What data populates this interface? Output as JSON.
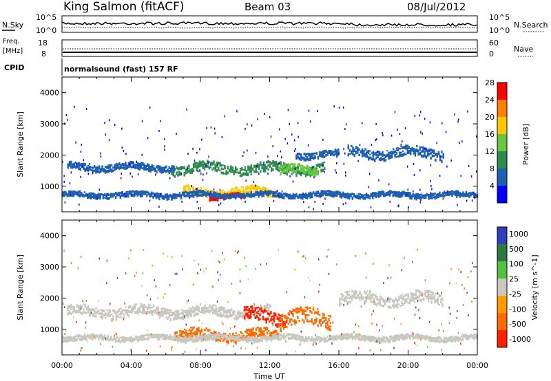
{
  "header": {
    "station": "King Salmon (fitACF)",
    "beam": "Beam 03",
    "date": "08/Jul/2012"
  },
  "noise_panel": {
    "left_label": "N.Sky",
    "right_label": "N.Search",
    "left_ticks": [
      "10^5",
      "10^0"
    ],
    "right_ticks": [
      "10^5",
      "10^0"
    ]
  },
  "freq_panel": {
    "left_label_1": "Freq.",
    "left_label_2": "[MHz]",
    "right_label": "Nave",
    "left_ticks": [
      "18",
      "8"
    ],
    "right_ticks": [
      "60",
      "0"
    ]
  },
  "cpid": {
    "label": "CPID",
    "value": "normalsound (fast) 157 RF"
  },
  "chart_data": [
    {
      "type": "heatmap",
      "title": "",
      "xlabel": "Time UT",
      "ylabel": "Slant Range [km]",
      "xlim_hours": [
        0,
        24
      ],
      "ylim": [
        180,
        4500
      ],
      "x_ticks": [
        "00:00",
        "04:00",
        "08:00",
        "12:00",
        "16:00",
        "20:00",
        "00:00"
      ],
      "y_ticks": [
        "1000",
        "2000",
        "3000",
        "4000"
      ],
      "colorbar_label": "Power [dB]",
      "colorbar_ticks": [
        "4",
        "8",
        "12",
        "16",
        "20",
        "24",
        "28"
      ],
      "colorbar_range": [
        0,
        30
      ],
      "colors": [
        "#0000ff",
        "#1f5fb0",
        "#2e8a4e",
        "#66c640",
        "#ffc800",
        "#ff7f00",
        "#ff0000"
      ],
      "echo_regions": [
        {
          "t0": 6.3,
          "t1": 15.2,
          "r_mid": 1600,
          "width": 300,
          "power": 10
        },
        {
          "t0": 0.3,
          "t1": 6.5,
          "r_mid": 1650,
          "width": 200,
          "power": 7
        },
        {
          "t0": 7.0,
          "t1": 12.5,
          "r_mid": 850,
          "width": 250,
          "power": 18
        },
        {
          "t0": 8.5,
          "t1": 10.5,
          "r_mid": 700,
          "width": 150,
          "power": 26
        },
        {
          "t0": 12.5,
          "t1": 14.8,
          "r_mid": 1550,
          "width": 250,
          "power": 16
        },
        {
          "t0": 16.5,
          "t1": 22.0,
          "r_mid": 2100,
          "width": 300,
          "power": 7
        },
        {
          "t0": 13.5,
          "t1": 16.0,
          "r_mid": 2050,
          "width": 200,
          "power": 5
        },
        {
          "t0": 0.0,
          "t1": 24.0,
          "r_mid": 760,
          "width": 150,
          "power": 5
        }
      ]
    },
    {
      "type": "heatmap",
      "title": "",
      "xlabel": "Time UT",
      "ylabel": "Slant Range [km]",
      "xlim_hours": [
        0,
        24
      ],
      "ylim": [
        180,
        4500
      ],
      "x_ticks": [
        "00:00",
        "04:00",
        "08:00",
        "12:00",
        "16:00",
        "20:00",
        "00:00"
      ],
      "y_ticks": [
        "1000",
        "2000",
        "3000",
        "4000"
      ],
      "colorbar_label": "Velocity [m s^-1]",
      "colorbar_ticks": [
        "1000",
        "500",
        "100",
        "25",
        "-25",
        "-100",
        "-500",
        "-1000"
      ],
      "colorbar_range": [
        -1000,
        1000
      ],
      "colors": [
        "#2e3fb8",
        "#2e7a3e",
        "#55c040",
        "#c8c8c0",
        "#ff9a00",
        "#ff6a00",
        "#ff2000"
      ],
      "echo_regions": [
        {
          "t0": 0.3,
          "t1": 12.0,
          "r_mid": 1600,
          "width": 300,
          "velocity": 0
        },
        {
          "t0": 6.5,
          "t1": 12.5,
          "r_mid": 850,
          "width": 300,
          "velocity": -200
        },
        {
          "t0": 10.5,
          "t1": 13.0,
          "r_mid": 1450,
          "width": 400,
          "velocity": -700
        },
        {
          "t0": 12.5,
          "t1": 15.5,
          "r_mid": 1350,
          "width": 500,
          "velocity": -150
        },
        {
          "t0": 16.0,
          "t1": 22.0,
          "r_mid": 2000,
          "width": 350,
          "velocity": 0
        },
        {
          "t0": 0.0,
          "t1": 24.0,
          "r_mid": 760,
          "width": 150,
          "velocity": 0
        }
      ]
    }
  ]
}
